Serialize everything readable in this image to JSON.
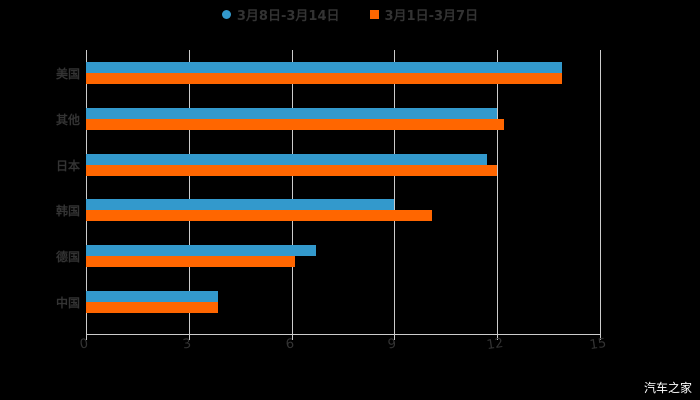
{
  "chart_data": {
    "type": "bar",
    "orientation": "horizontal",
    "title": "",
    "categories": [
      "美国",
      "其他",
      "日本",
      "韩国",
      "德国",
      "中国"
    ],
    "series": [
      {
        "name": "3月8日-3月14日",
        "color": "#3399CC",
        "values": [
          13.9,
          12.0,
          11.7,
          9.0,
          6.7,
          3.85
        ]
      },
      {
        "name": "3月1日-3月7日",
        "color": "#FF6600",
        "values": [
          13.9,
          12.2,
          12.0,
          10.1,
          6.1,
          3.85
        ]
      }
    ],
    "xlabel": "",
    "ylabel": "",
    "xlim": [
      0,
      15
    ],
    "x_ticks": [
      "0",
      "3",
      "6",
      "9",
      "12",
      "15"
    ],
    "grid": true,
    "legend_position": "top"
  },
  "legend": {
    "items": [
      {
        "label": "3月8日-3月14日",
        "color": "#3399CC",
        "shape": "circle"
      },
      {
        "label": "3月1日-3月7日",
        "color": "#FF6600",
        "shape": "square"
      }
    ]
  },
  "watermark": "汽车之家"
}
